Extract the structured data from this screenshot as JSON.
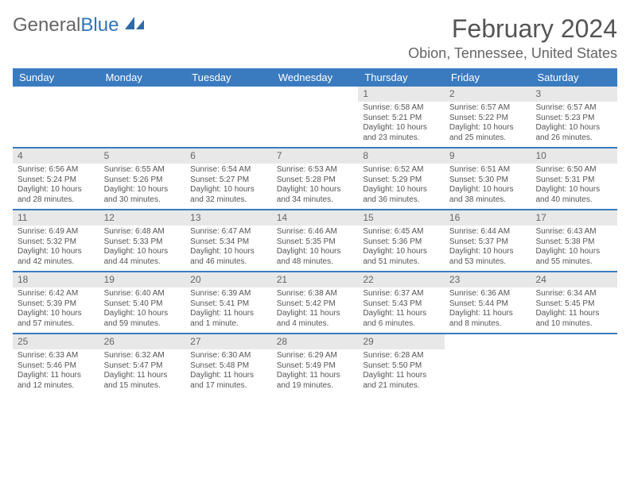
{
  "brand": {
    "part1": "General",
    "part2": "Blue"
  },
  "title": "February 2024",
  "location": "Obion, Tennessee, United States",
  "colors": {
    "header_bar": "#3a7bbf",
    "brand_blue": "#3173b8",
    "date_bg": "#e8e8e8",
    "text": "#555555",
    "background": "#ffffff"
  },
  "day_names": [
    "Sunday",
    "Monday",
    "Tuesday",
    "Wednesday",
    "Thursday",
    "Friday",
    "Saturday"
  ],
  "weeks": [
    [
      null,
      null,
      null,
      null,
      {
        "n": "1",
        "sr": "Sunrise: 6:58 AM",
        "ss": "Sunset: 5:21 PM",
        "dl1": "Daylight: 10 hours",
        "dl2": "and 23 minutes."
      },
      {
        "n": "2",
        "sr": "Sunrise: 6:57 AM",
        "ss": "Sunset: 5:22 PM",
        "dl1": "Daylight: 10 hours",
        "dl2": "and 25 minutes."
      },
      {
        "n": "3",
        "sr": "Sunrise: 6:57 AM",
        "ss": "Sunset: 5:23 PM",
        "dl1": "Daylight: 10 hours",
        "dl2": "and 26 minutes."
      }
    ],
    [
      {
        "n": "4",
        "sr": "Sunrise: 6:56 AM",
        "ss": "Sunset: 5:24 PM",
        "dl1": "Daylight: 10 hours",
        "dl2": "and 28 minutes."
      },
      {
        "n": "5",
        "sr": "Sunrise: 6:55 AM",
        "ss": "Sunset: 5:26 PM",
        "dl1": "Daylight: 10 hours",
        "dl2": "and 30 minutes."
      },
      {
        "n": "6",
        "sr": "Sunrise: 6:54 AM",
        "ss": "Sunset: 5:27 PM",
        "dl1": "Daylight: 10 hours",
        "dl2": "and 32 minutes."
      },
      {
        "n": "7",
        "sr": "Sunrise: 6:53 AM",
        "ss": "Sunset: 5:28 PM",
        "dl1": "Daylight: 10 hours",
        "dl2": "and 34 minutes."
      },
      {
        "n": "8",
        "sr": "Sunrise: 6:52 AM",
        "ss": "Sunset: 5:29 PM",
        "dl1": "Daylight: 10 hours",
        "dl2": "and 36 minutes."
      },
      {
        "n": "9",
        "sr": "Sunrise: 6:51 AM",
        "ss": "Sunset: 5:30 PM",
        "dl1": "Daylight: 10 hours",
        "dl2": "and 38 minutes."
      },
      {
        "n": "10",
        "sr": "Sunrise: 6:50 AM",
        "ss": "Sunset: 5:31 PM",
        "dl1": "Daylight: 10 hours",
        "dl2": "and 40 minutes."
      }
    ],
    [
      {
        "n": "11",
        "sr": "Sunrise: 6:49 AM",
        "ss": "Sunset: 5:32 PM",
        "dl1": "Daylight: 10 hours",
        "dl2": "and 42 minutes."
      },
      {
        "n": "12",
        "sr": "Sunrise: 6:48 AM",
        "ss": "Sunset: 5:33 PM",
        "dl1": "Daylight: 10 hours",
        "dl2": "and 44 minutes."
      },
      {
        "n": "13",
        "sr": "Sunrise: 6:47 AM",
        "ss": "Sunset: 5:34 PM",
        "dl1": "Daylight: 10 hours",
        "dl2": "and 46 minutes."
      },
      {
        "n": "14",
        "sr": "Sunrise: 6:46 AM",
        "ss": "Sunset: 5:35 PM",
        "dl1": "Daylight: 10 hours",
        "dl2": "and 48 minutes."
      },
      {
        "n": "15",
        "sr": "Sunrise: 6:45 AM",
        "ss": "Sunset: 5:36 PM",
        "dl1": "Daylight: 10 hours",
        "dl2": "and 51 minutes."
      },
      {
        "n": "16",
        "sr": "Sunrise: 6:44 AM",
        "ss": "Sunset: 5:37 PM",
        "dl1": "Daylight: 10 hours",
        "dl2": "and 53 minutes."
      },
      {
        "n": "17",
        "sr": "Sunrise: 6:43 AM",
        "ss": "Sunset: 5:38 PM",
        "dl1": "Daylight: 10 hours",
        "dl2": "and 55 minutes."
      }
    ],
    [
      {
        "n": "18",
        "sr": "Sunrise: 6:42 AM",
        "ss": "Sunset: 5:39 PM",
        "dl1": "Daylight: 10 hours",
        "dl2": "and 57 minutes."
      },
      {
        "n": "19",
        "sr": "Sunrise: 6:40 AM",
        "ss": "Sunset: 5:40 PM",
        "dl1": "Daylight: 10 hours",
        "dl2": "and 59 minutes."
      },
      {
        "n": "20",
        "sr": "Sunrise: 6:39 AM",
        "ss": "Sunset: 5:41 PM",
        "dl1": "Daylight: 11 hours",
        "dl2": "and 1 minute."
      },
      {
        "n": "21",
        "sr": "Sunrise: 6:38 AM",
        "ss": "Sunset: 5:42 PM",
        "dl1": "Daylight: 11 hours",
        "dl2": "and 4 minutes."
      },
      {
        "n": "22",
        "sr": "Sunrise: 6:37 AM",
        "ss": "Sunset: 5:43 PM",
        "dl1": "Daylight: 11 hours",
        "dl2": "and 6 minutes."
      },
      {
        "n": "23",
        "sr": "Sunrise: 6:36 AM",
        "ss": "Sunset: 5:44 PM",
        "dl1": "Daylight: 11 hours",
        "dl2": "and 8 minutes."
      },
      {
        "n": "24",
        "sr": "Sunrise: 6:34 AM",
        "ss": "Sunset: 5:45 PM",
        "dl1": "Daylight: 11 hours",
        "dl2": "and 10 minutes."
      }
    ],
    [
      {
        "n": "25",
        "sr": "Sunrise: 6:33 AM",
        "ss": "Sunset: 5:46 PM",
        "dl1": "Daylight: 11 hours",
        "dl2": "and 12 minutes."
      },
      {
        "n": "26",
        "sr": "Sunrise: 6:32 AM",
        "ss": "Sunset: 5:47 PM",
        "dl1": "Daylight: 11 hours",
        "dl2": "and 15 minutes."
      },
      {
        "n": "27",
        "sr": "Sunrise: 6:30 AM",
        "ss": "Sunset: 5:48 PM",
        "dl1": "Daylight: 11 hours",
        "dl2": "and 17 minutes."
      },
      {
        "n": "28",
        "sr": "Sunrise: 6:29 AM",
        "ss": "Sunset: 5:49 PM",
        "dl1": "Daylight: 11 hours",
        "dl2": "and 19 minutes."
      },
      {
        "n": "29",
        "sr": "Sunrise: 6:28 AM",
        "ss": "Sunset: 5:50 PM",
        "dl1": "Daylight: 11 hours",
        "dl2": "and 21 minutes."
      },
      null,
      null
    ]
  ]
}
